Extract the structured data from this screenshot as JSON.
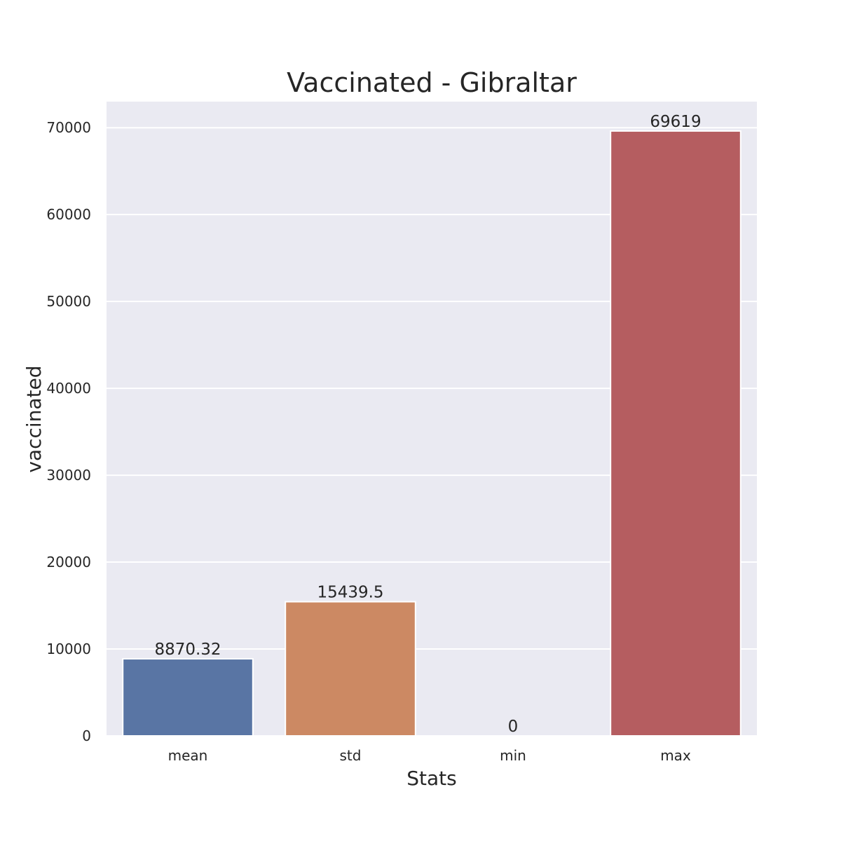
{
  "chart_data": {
    "type": "bar",
    "title": "Vaccinated - Gibraltar",
    "xlabel": "Stats",
    "ylabel": "vaccinated",
    "categories": [
      "mean",
      "std",
      "min",
      "max"
    ],
    "values": [
      8870.32,
      15439.5,
      0,
      69619
    ],
    "value_labels": [
      "8870.32",
      "15439.5",
      "0",
      "69619"
    ],
    "colors": [
      "#5975a4",
      "#cc8963",
      "#5f9e6e",
      "#b55d60"
    ],
    "ylim": [
      0,
      73000
    ],
    "yticks": [
      0,
      10000,
      20000,
      30000,
      40000,
      50000,
      60000,
      70000
    ],
    "grid": true,
    "background": "#eaeaf2"
  }
}
